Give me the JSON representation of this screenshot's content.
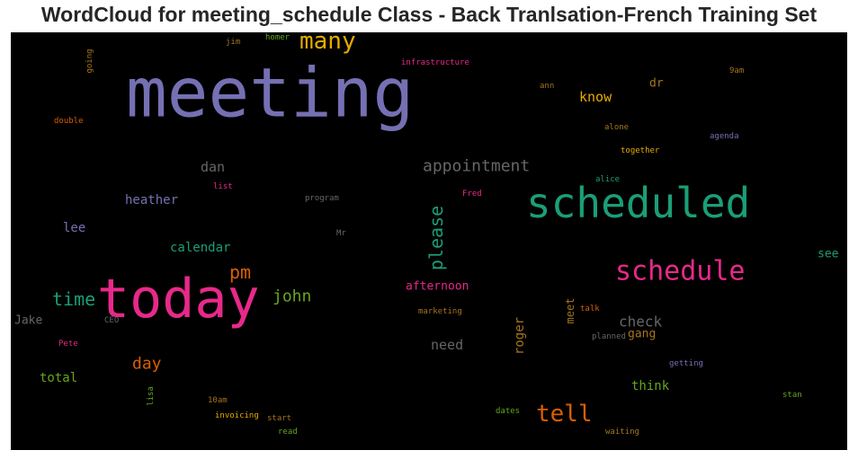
{
  "chart_data": {
    "type": "wordcloud",
    "title": "WordCloud for meeting_schedule Class - Back Tranlsation-French Training Set",
    "background": "#000000",
    "colormap": "Dark2",
    "words": [
      {
        "text": "meeting",
        "color": "#7570b3",
        "rotated": false
      },
      {
        "text": "today",
        "color": "#e7298a",
        "rotated": false
      },
      {
        "text": "scheduled",
        "color": "#1b9e77",
        "rotated": false
      },
      {
        "text": "schedule",
        "color": "#e7298a",
        "rotated": false
      },
      {
        "text": "many",
        "color": "#e6ab02",
        "rotated": false
      },
      {
        "text": "tell",
        "color": "#d95f02",
        "rotated": false
      },
      {
        "text": "appointment",
        "color": "#666666",
        "rotated": false
      },
      {
        "text": "please",
        "color": "#1b9e77",
        "rotated": true
      },
      {
        "text": "pm",
        "color": "#d95f02",
        "rotated": false
      },
      {
        "text": "time",
        "color": "#1b9e77",
        "rotated": false
      },
      {
        "text": "john",
        "color": "#66a61e",
        "rotated": false
      },
      {
        "text": "day",
        "color": "#d95f02",
        "rotated": false
      },
      {
        "text": "dan",
        "color": "#666666",
        "rotated": false
      },
      {
        "text": "know",
        "color": "#e6ab02",
        "rotated": false
      },
      {
        "text": "need",
        "color": "#666666",
        "rotated": false
      },
      {
        "text": "check",
        "color": "#666666",
        "rotated": false
      },
      {
        "text": "heather",
        "color": "#7570b3",
        "rotated": false
      },
      {
        "text": "calendar",
        "color": "#1b9e77",
        "rotated": false
      },
      {
        "text": "afternoon",
        "color": "#e7298a",
        "rotated": false
      },
      {
        "text": "think",
        "color": "#66a61e",
        "rotated": false
      },
      {
        "text": "lee",
        "color": "#7570b3",
        "rotated": false
      },
      {
        "text": "roger",
        "color": "#a6761d",
        "rotated": true
      },
      {
        "text": "meet",
        "color": "#a6761d",
        "rotated": true
      },
      {
        "text": "gang",
        "color": "#a6761d",
        "rotated": false
      },
      {
        "text": "total",
        "color": "#66a61e",
        "rotated": false
      },
      {
        "text": "Jake",
        "color": "#666666",
        "rotated": false
      },
      {
        "text": "see",
        "color": "#1b9e77",
        "rotated": false
      },
      {
        "text": "dr",
        "color": "#a6761d",
        "rotated": false
      },
      {
        "text": "jim",
        "color": "#a6761d",
        "rotated": false
      },
      {
        "text": "homer",
        "color": "#66a61e",
        "rotated": false
      },
      {
        "text": "infrastructure",
        "color": "#e7298a",
        "rotated": false
      },
      {
        "text": "going",
        "color": "#a6761d",
        "rotated": true
      },
      {
        "text": "9am",
        "color": "#a6761d",
        "rotated": false
      },
      {
        "text": "ann",
        "color": "#a6761d",
        "rotated": false
      },
      {
        "text": "double",
        "color": "#d95f02",
        "rotated": false
      },
      {
        "text": "alone",
        "color": "#a6761d",
        "rotated": false
      },
      {
        "text": "agenda",
        "color": "#7570b3",
        "rotated": false
      },
      {
        "text": "together",
        "color": "#e6ab02",
        "rotated": false
      },
      {
        "text": "alice",
        "color": "#1b9e77",
        "rotated": false
      },
      {
        "text": "list",
        "color": "#e7298a",
        "rotated": false
      },
      {
        "text": "program",
        "color": "#666666",
        "rotated": false
      },
      {
        "text": "Fred",
        "color": "#e7298a",
        "rotated": false
      },
      {
        "text": "Mr",
        "color": "#666666",
        "rotated": false
      },
      {
        "text": "marketing",
        "color": "#a6761d",
        "rotated": false
      },
      {
        "text": "talk",
        "color": "#d95f02",
        "rotated": false
      },
      {
        "text": "planned",
        "color": "#666666",
        "rotated": false
      },
      {
        "text": "CEO",
        "color": "#666666",
        "rotated": false
      },
      {
        "text": "Pete",
        "color": "#e7298a",
        "rotated": false
      },
      {
        "text": "getting",
        "color": "#7570b3",
        "rotated": false
      },
      {
        "text": "lisa",
        "color": "#66a61e",
        "rotated": true
      },
      {
        "text": "10am",
        "color": "#a6761d",
        "rotated": false
      },
      {
        "text": "invoicing",
        "color": "#e6ab02",
        "rotated": false
      },
      {
        "text": "start",
        "color": "#a6761d",
        "rotated": false
      },
      {
        "text": "read",
        "color": "#66a61e",
        "rotated": false
      },
      {
        "text": "dates",
        "color": "#66a61e",
        "rotated": false
      },
      {
        "text": "waiting",
        "color": "#a6761d",
        "rotated": false
      },
      {
        "text": "stan",
        "color": "#66a61e",
        "rotated": false
      }
    ]
  }
}
